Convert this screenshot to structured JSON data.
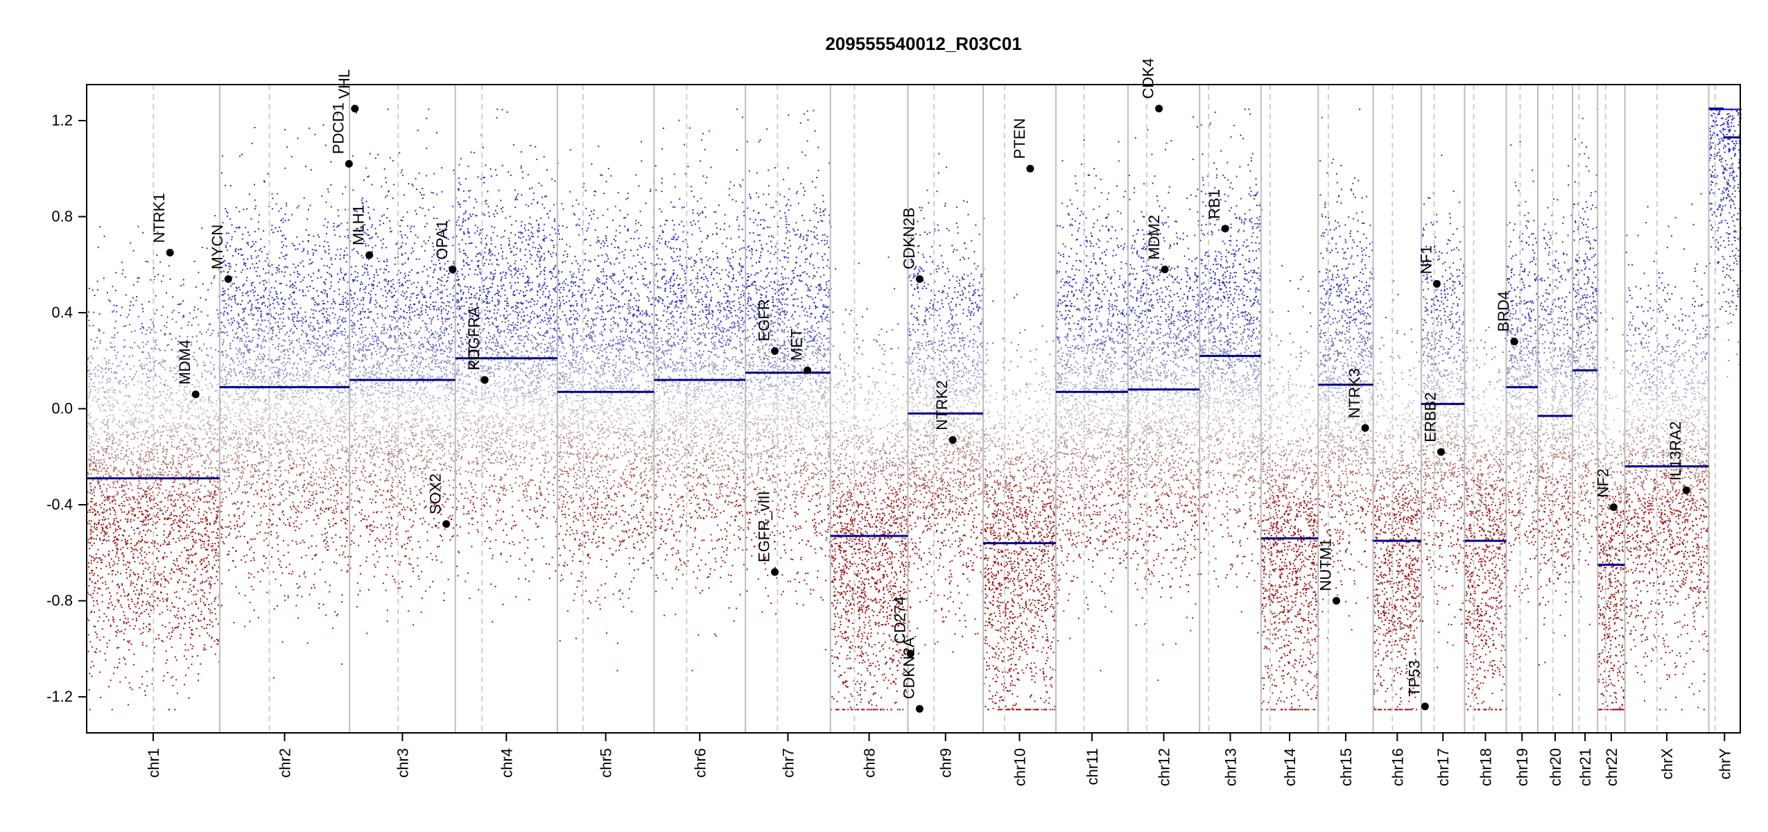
{
  "chart_data": {
    "type": "scatter",
    "title": "209555540012_R03C01",
    "xlabel": "",
    "ylabel": "",
    "ylim": [
      -1.35,
      1.35
    ],
    "y_ticks": [
      -1.2,
      -0.8,
      -0.4,
      0.0,
      0.4,
      0.8,
      1.2
    ],
    "y_tick_labels": [
      "-1.2",
      "-0.8",
      "-0.4",
      "0.0",
      "0.4",
      "0.8",
      "1.2"
    ],
    "points_clipped_at": [
      -1.25,
      1.25
    ],
    "point_colors": {
      "gain": "#2b2bc8",
      "loss": "#a01010",
      "neutral": "#c8c8c8"
    },
    "segment_color": "#00008b",
    "genome_length_mb": 3095,
    "chromosomes": [
      {
        "name": "chr1",
        "start": 0,
        "end": 249,
        "centromere": 125
      },
      {
        "name": "chr2",
        "start": 249,
        "end": 492,
        "centromere": 93
      },
      {
        "name": "chr3",
        "start": 492,
        "end": 690,
        "centromere": 91
      },
      {
        "name": "chr4",
        "start": 690,
        "end": 881,
        "centromere": 50
      },
      {
        "name": "chr5",
        "start": 881,
        "end": 1062,
        "centromere": 48
      },
      {
        "name": "chr6",
        "start": 1062,
        "end": 1233,
        "centromere": 61
      },
      {
        "name": "chr7",
        "start": 1233,
        "end": 1392,
        "centromere": 60
      },
      {
        "name": "chr8",
        "start": 1392,
        "end": 1537,
        "centromere": 45
      },
      {
        "name": "chr9",
        "start": 1537,
        "end": 1678,
        "centromere": 49
      },
      {
        "name": "chr10",
        "start": 1678,
        "end": 1814,
        "centromere": 40
      },
      {
        "name": "chr11",
        "start": 1814,
        "end": 1949,
        "centromere": 53
      },
      {
        "name": "chr12",
        "start": 1949,
        "end": 2083,
        "centromere": 35
      },
      {
        "name": "chr13",
        "start": 2083,
        "end": 2198,
        "centromere": 17
      },
      {
        "name": "chr14",
        "start": 2198,
        "end": 2305,
        "centromere": 17
      },
      {
        "name": "chr15",
        "start": 2305,
        "end": 2408,
        "centromere": 19
      },
      {
        "name": "chr16",
        "start": 2408,
        "end": 2498,
        "centromere": 36
      },
      {
        "name": "chr17",
        "start": 2498,
        "end": 2579,
        "centromere": 24
      },
      {
        "name": "chr18",
        "start": 2579,
        "end": 2657,
        "centromere": 17
      },
      {
        "name": "chr19",
        "start": 2657,
        "end": 2716,
        "centromere": 26
      },
      {
        "name": "chr20",
        "start": 2716,
        "end": 2781,
        "centromere": 28
      },
      {
        "name": "chr21",
        "start": 2781,
        "end": 2828,
        "centromere": 12
      },
      {
        "name": "chr22",
        "start": 2828,
        "end": 2879,
        "centromere": 15
      },
      {
        "name": "chrX",
        "start": 2879,
        "end": 3036,
        "centromere": 60
      },
      {
        "name": "chrY",
        "start": 3036,
        "end": 3095,
        "centromere": 12
      }
    ],
    "segments": [
      {
        "chrom": "chr1",
        "start": 0,
        "end": 249,
        "value": -0.29
      },
      {
        "chrom": "chr2",
        "start": 249,
        "end": 492,
        "value": 0.09
      },
      {
        "chrom": "chr3",
        "start": 492,
        "end": 690,
        "value": 0.12
      },
      {
        "chrom": "chr4",
        "start": 690,
        "end": 881,
        "value": 0.21
      },
      {
        "chrom": "chr5",
        "start": 881,
        "end": 1062,
        "value": 0.07
      },
      {
        "chrom": "chr6",
        "start": 1062,
        "end": 1233,
        "value": 0.12
      },
      {
        "chrom": "chr7",
        "start": 1233,
        "end": 1392,
        "value": 0.15
      },
      {
        "chrom": "chr8",
        "start": 1392,
        "end": 1537,
        "value": -0.53
      },
      {
        "chrom": "chr9",
        "start": 1537,
        "end": 1678,
        "value": -0.02
      },
      {
        "chrom": "chr10",
        "start": 1678,
        "end": 1814,
        "value": -0.56
      },
      {
        "chrom": "chr11",
        "start": 1814,
        "end": 1949,
        "value": 0.07
      },
      {
        "chrom": "chr12",
        "start": 1949,
        "end": 2083,
        "value": 0.08
      },
      {
        "chrom": "chr13",
        "start": 2083,
        "end": 2198,
        "value": 0.22
      },
      {
        "chrom": "chr14",
        "start": 2198,
        "end": 2305,
        "value": -0.54
      },
      {
        "chrom": "chr15",
        "start": 2305,
        "end": 2408,
        "value": 0.1
      },
      {
        "chrom": "chr16",
        "start": 2408,
        "end": 2498,
        "value": -0.55
      },
      {
        "chrom": "chr17",
        "start": 2498,
        "end": 2579,
        "value": 0.02
      },
      {
        "chrom": "chr18",
        "start": 2579,
        "end": 2657,
        "value": -0.55
      },
      {
        "chrom": "chr19",
        "start": 2657,
        "end": 2716,
        "value": 0.09
      },
      {
        "chrom": "chr20",
        "start": 2716,
        "end": 2781,
        "value": -0.03
      },
      {
        "chrom": "chr21",
        "start": 2781,
        "end": 2828,
        "value": 0.16
      },
      {
        "chrom": "chr22",
        "start": 2828,
        "end": 2879,
        "value": -0.65
      },
      {
        "chrom": "chrX",
        "start": 2879,
        "end": 3036,
        "value": -0.24
      },
      {
        "chrom": "chrY",
        "start": 3036,
        "end": 3064,
        "value": 1.25
      },
      {
        "chrom": "chrY",
        "start": 3064,
        "end": 3095,
        "value": 1.13
      }
    ],
    "genes": [
      {
        "name": "NTRK1",
        "chrom": "chr1",
        "pos": 156,
        "value": 0.65
      },
      {
        "name": "MDM4",
        "chrom": "chr1",
        "pos": 204,
        "value": 0.06
      },
      {
        "name": "MYCN",
        "chrom": "chr2",
        "pos": 16,
        "value": 0.54
      },
      {
        "name": "VHL",
        "chrom": "chr3",
        "pos": 10,
        "value": 1.25
      },
      {
        "name": "PDCD1",
        "chrom": "chr2",
        "pos": 242,
        "value": 1.02
      },
      {
        "name": "MLH1",
        "chrom": "chr3",
        "pos": 37,
        "value": 0.64
      },
      {
        "name": "SOX2",
        "chrom": "chr3",
        "pos": 181,
        "value": -0.48
      },
      {
        "name": "OPA1",
        "chrom": "chr3",
        "pos": 193,
        "value": 0.58
      },
      {
        "name": "PDGFRA",
        "chrom": "chr4",
        "pos": 55,
        "value": 0.12
      },
      {
        "name": "KIT",
        "chrom": "chr4",
        "pos": 55,
        "value": 0.12
      },
      {
        "name": "EGFR",
        "chrom": "chr7",
        "pos": 55,
        "value": 0.24
      },
      {
        "name": "EGFR_vIII",
        "chrom": "chr7",
        "pos": 55,
        "value": -0.68
      },
      {
        "name": "MET",
        "chrom": "chr7",
        "pos": 116,
        "value": 0.16
      },
      {
        "name": "CDKN2B",
        "chrom": "chr9",
        "pos": 22,
        "value": 0.54
      },
      {
        "name": "CD274",
        "chrom": "chr9",
        "pos": 5,
        "value": -1.02
      },
      {
        "name": "CDKN2A",
        "chrom": "chr9",
        "pos": 22,
        "value": -1.25
      },
      {
        "name": "NTRK2",
        "chrom": "chr9",
        "pos": 84,
        "value": -0.13
      },
      {
        "name": "PTEN",
        "chrom": "chr10",
        "pos": 88,
        "value": 1.0
      },
      {
        "name": "CDK4",
        "chrom": "chr12",
        "pos": 58,
        "value": 1.25
      },
      {
        "name": "MDM2",
        "chrom": "chr12",
        "pos": 69,
        "value": 0.58
      },
      {
        "name": "RB1",
        "chrom": "chr13",
        "pos": 48,
        "value": 0.75
      },
      {
        "name": "NUTM1",
        "chrom": "chr15",
        "pos": 34,
        "value": -0.8
      },
      {
        "name": "NTRK3",
        "chrom": "chr15",
        "pos": 88,
        "value": -0.08
      },
      {
        "name": "TP53",
        "chrom": "chr17",
        "pos": 7,
        "value": -1.24
      },
      {
        "name": "NF1",
        "chrom": "chr17",
        "pos": 29,
        "value": 0.52
      },
      {
        "name": "ERBB2",
        "chrom": "chr17",
        "pos": 37,
        "value": -0.18
      },
      {
        "name": "BRD4",
        "chrom": "chr19",
        "pos": 15,
        "value": 0.28
      },
      {
        "name": "NF2",
        "chrom": "chr22",
        "pos": 30,
        "value": -0.41
      },
      {
        "name": "IL13RA2",
        "chrom": "chrX",
        "pos": 115,
        "value": -0.34
      }
    ]
  }
}
